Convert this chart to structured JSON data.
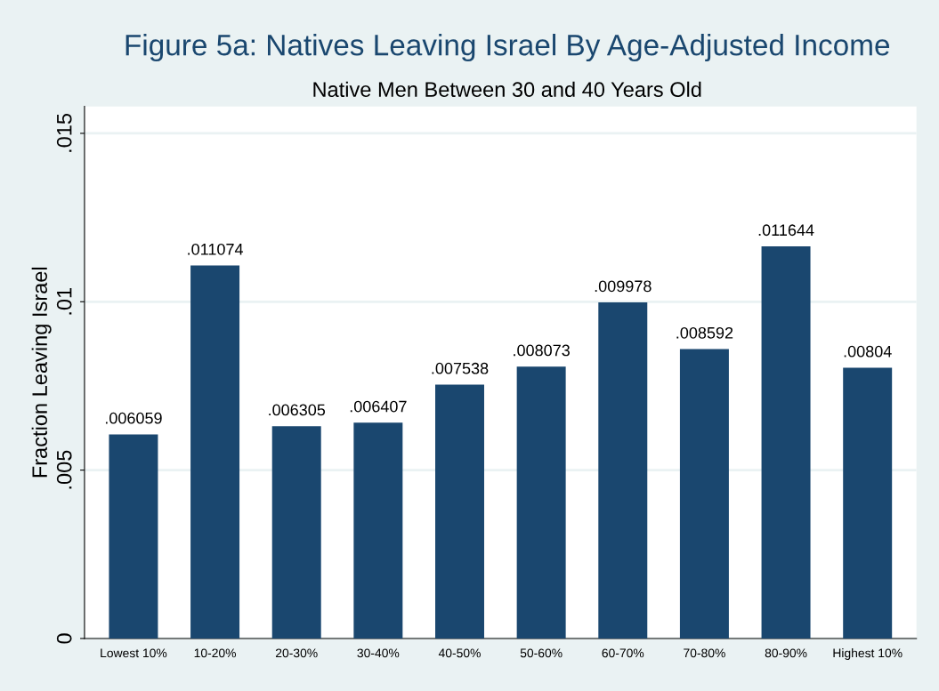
{
  "chart_data": {
    "type": "bar",
    "title": "Figure 5a: Natives Leaving Israel By Age-Adjusted Income",
    "subtitle": "Native Men Between 30 and 40 Years Old",
    "ylabel": "Fraction Leaving Israel",
    "categories": [
      "Lowest 10%",
      "10-20%",
      "20-30%",
      "30-40%",
      "40-50%",
      "50-60%",
      "60-70%",
      "70-80%",
      "80-90%",
      "Highest 10%"
    ],
    "values": [
      0.006059,
      0.011074,
      0.006305,
      0.006407,
      0.007538,
      0.008073,
      0.009978,
      0.008592,
      0.011644,
      0.00804
    ],
    "value_labels": [
      ".006059",
      ".011074",
      ".006305",
      ".006407",
      ".007538",
      ".008073",
      ".009978",
      ".008592",
      ".011644",
      ".00804"
    ],
    "color": "#1a476f",
    "ylim": [
      0,
      0.0158
    ],
    "yticks": [
      0,
      {
        "value": 0.005,
        "label": ".005"
      },
      {
        "value": 0.01,
        "label": ".01"
      },
      {
        "value": 0.015,
        "label": ".015"
      }
    ],
    "grid": "y"
  }
}
